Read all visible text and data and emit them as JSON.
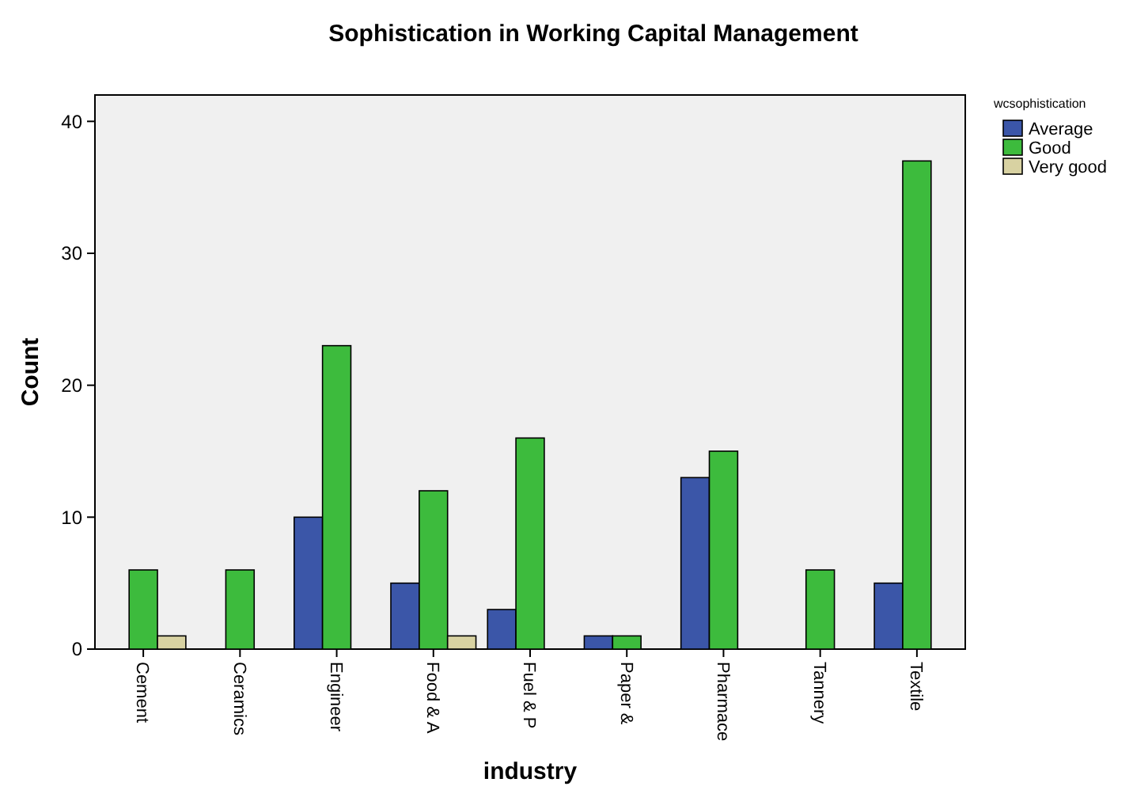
{
  "chart_data": {
    "type": "bar",
    "title": "Sophistication in Working Capital Management",
    "xlabel": "industry",
    "ylabel": "Count",
    "legend_title": "wcsophistication",
    "legend": "top right",
    "grid": false,
    "categories": [
      "Cement",
      "Ceramics",
      "Engineer",
      "Food & A",
      "Fuel & P",
      "Paper &",
      "Pharmace",
      "Tannery",
      "Textile"
    ],
    "series": [
      {
        "name": "Average",
        "color": "#3b56a8",
        "values": [
          null,
          null,
          10,
          5,
          3,
          1,
          13,
          null,
          5
        ]
      },
      {
        "name": "Good",
        "color": "#3dbb3d",
        "values": [
          6,
          6,
          23,
          12,
          16,
          1,
          15,
          6,
          37
        ]
      },
      {
        "name": "Very good",
        "color": "#d8d2a2",
        "values": [
          1,
          null,
          null,
          1,
          null,
          null,
          null,
          null,
          null
        ]
      }
    ],
    "ylim": [
      0,
      42
    ],
    "yticks": [
      0,
      10,
      20,
      30,
      40
    ]
  }
}
